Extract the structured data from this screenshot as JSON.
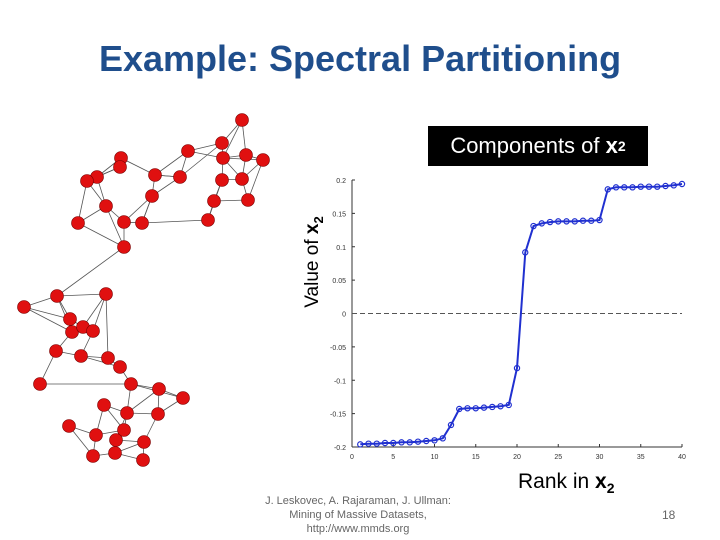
{
  "slide": {
    "title": "Example: Spectral Partitioning",
    "footer_lines": [
      "J. Leskovec, A. Rajaraman, J. Ullman:",
      "Mining of Massive Datasets,",
      "http://www.mmds.org"
    ],
    "page_number": "18",
    "title_color": "#1f4e8c"
  },
  "chart_box": {
    "label": "Components of ",
    "var": "x",
    "sub": "2"
  },
  "chart_data": {
    "type": "line",
    "xlabel_text": "Rank in ",
    "xlabel_var": "x",
    "xlabel_sub": "2",
    "ylabel_text": "Value of ",
    "ylabel_var": "x",
    "ylabel_sub": "2",
    "xlim": [
      0,
      40
    ],
    "ylim": [
      -0.2,
      0.2
    ],
    "xticks": [
      "0",
      "5",
      "10",
      "15",
      "20",
      "25",
      "30",
      "35",
      "40"
    ],
    "yticks": [
      "-0.2",
      "-0.15",
      "-0.1",
      "-0.05",
      "0",
      "0.05",
      "0.1",
      "0.15",
      "0.2"
    ],
    "zero_line": true,
    "series": [
      {
        "color": "#2030d0",
        "x": [
          1,
          2,
          3,
          4,
          5,
          6,
          7,
          8,
          9,
          10,
          11,
          12,
          13,
          14,
          15,
          16,
          17,
          18,
          19,
          20,
          21,
          22,
          23,
          24,
          25,
          26,
          27,
          28,
          29,
          30,
          31,
          32,
          33,
          34,
          35,
          36,
          37,
          38,
          39,
          40
        ],
        "y": [
          -0.196,
          -0.195,
          -0.195,
          -0.194,
          -0.194,
          -0.193,
          -0.193,
          -0.192,
          -0.191,
          -0.19,
          -0.187,
          -0.167,
          -0.143,
          -0.142,
          -0.142,
          -0.141,
          -0.14,
          -0.139,
          -0.137,
          -0.0818,
          0.0916,
          0.131,
          0.135,
          0.137,
          0.138,
          0.138,
          0.138,
          0.139,
          0.139,
          0.14,
          0.186,
          0.189,
          0.189,
          0.189,
          0.19,
          0.19,
          0.19,
          0.191,
          0.192,
          0.194
        ]
      }
    ]
  },
  "network": {
    "node_color": "#e01010",
    "edge_color": "#555555"
  }
}
